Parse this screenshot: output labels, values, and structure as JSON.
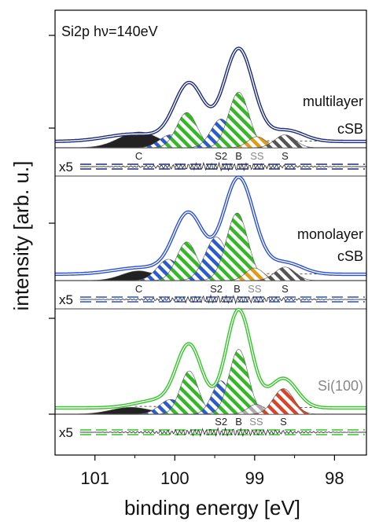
{
  "chart_data": {
    "type": "line",
    "title": "Si2p hν=140eV",
    "xlabel": "binding energy [eV]",
    "ylabel": "intensity [arb. u.]",
    "xlim": [
      101.5,
      97.6
    ],
    "x_reversed": true,
    "x_ticks": [
      {
        "value": 101,
        "label": "101"
      },
      {
        "value": 100,
        "label": "100"
      },
      {
        "value": 99,
        "label": "99"
      },
      {
        "value": 98,
        "label": "98"
      }
    ],
    "grid": false,
    "legend": "none",
    "panels": [
      {
        "name": "multilayer cSB",
        "label_lines": [
          "multilayer",
          "cSB"
        ],
        "line_color": "#1b2a7a",
        "residual_label": "x5",
        "spectrum_peaks": [
          {
            "center": 99.82,
            "height": 0.62,
            "width": 0.26
          },
          {
            "center": 99.2,
            "height": 1.0,
            "width": 0.26
          },
          {
            "center": 98.6,
            "height": 0.12,
            "width": 0.3
          },
          {
            "center": 100.5,
            "height": 0.08,
            "width": 0.5
          }
        ],
        "components": [
          {
            "name": "C",
            "center": 100.45,
            "height": 0.17,
            "width": 0.35,
            "fill": "#222222",
            "pattern": "solid"
          },
          {
            "name": "",
            "center": 100.05,
            "height": 0.14,
            "width": 0.2,
            "fill": "#2c5bd0",
            "pattern": "hatch"
          },
          {
            "name": "",
            "center": 99.85,
            "height": 0.38,
            "width": 0.18,
            "fill": "#35b826",
            "pattern": "hatch"
          },
          {
            "name": "S2",
            "center": 99.42,
            "height": 0.31,
            "width": 0.18,
            "fill": "#2c5bd0",
            "pattern": "hatch"
          },
          {
            "name": "B",
            "center": 99.2,
            "height": 0.6,
            "width": 0.18,
            "fill": "#35b826",
            "pattern": "hatch"
          },
          {
            "name": "SS",
            "center": 98.97,
            "height": 0.12,
            "width": 0.16,
            "fill": "#e09a18",
            "pattern": "hatch"
          },
          {
            "name": "S",
            "center": 98.62,
            "height": 0.14,
            "width": 0.18,
            "fill": "#555555",
            "pattern": "hatch"
          }
        ],
        "component_labels": [
          "C",
          "S2",
          "B",
          "SS",
          "S"
        ]
      },
      {
        "name": "monolayer cSB",
        "label_lines": [
          "monolayer",
          "cSB"
        ],
        "line_color": "#2a4fd8",
        "residual_label": "x5",
        "spectrum_peaks": [
          {
            "center": 99.83,
            "height": 0.62,
            "width": 0.26
          },
          {
            "center": 99.2,
            "height": 1.0,
            "width": 0.27
          },
          {
            "center": 98.62,
            "height": 0.12,
            "width": 0.3
          },
          {
            "center": 100.4,
            "height": 0.07,
            "width": 0.5
          }
        ],
        "components": [
          {
            "name": "C",
            "center": 100.45,
            "height": 0.1,
            "width": 0.3,
            "fill": "#222222",
            "pattern": "solid"
          },
          {
            "name": "",
            "center": 100.08,
            "height": 0.22,
            "width": 0.2,
            "fill": "#2c5bd0",
            "pattern": "hatch"
          },
          {
            "name": "",
            "center": 99.85,
            "height": 0.4,
            "width": 0.18,
            "fill": "#35b826",
            "pattern": "hatch"
          },
          {
            "name": "S2",
            "center": 99.48,
            "height": 0.45,
            "width": 0.2,
            "fill": "#2c5bd0",
            "pattern": "hatch"
          },
          {
            "name": "B",
            "center": 99.22,
            "height": 0.7,
            "width": 0.19,
            "fill": "#35b826",
            "pattern": "hatch"
          },
          {
            "name": "SS",
            "center": 99.0,
            "height": 0.13,
            "width": 0.16,
            "fill": "#e09a18",
            "pattern": "hatch"
          },
          {
            "name": "S",
            "center": 98.62,
            "height": 0.14,
            "width": 0.18,
            "fill": "#555555",
            "pattern": "hatch"
          }
        ],
        "component_labels": [
          "C",
          "S2",
          "B",
          "SS",
          "S"
        ]
      },
      {
        "name": "Si(100)",
        "label_lines": [
          "Si(100)"
        ],
        "line_color": "#33c526",
        "residual_label": "x5",
        "spectrum_peaks": [
          {
            "center": 99.82,
            "height": 0.62,
            "width": 0.22
          },
          {
            "center": 99.2,
            "height": 1.0,
            "width": 0.22
          },
          {
            "center": 98.64,
            "height": 0.3,
            "width": 0.24
          },
          {
            "center": 100.2,
            "height": 0.08,
            "width": 0.4
          }
        ],
        "components": [
          {
            "name": "",
            "center": 100.55,
            "height": 0.07,
            "width": 0.35,
            "fill": "#222222",
            "pattern": "solid"
          },
          {
            "name": "",
            "center": 100.05,
            "height": 0.15,
            "width": 0.2,
            "fill": "#2c5bd0",
            "pattern": "hatch"
          },
          {
            "name": "",
            "center": 99.82,
            "height": 0.44,
            "width": 0.16,
            "fill": "#35b826",
            "pattern": "hatch"
          },
          {
            "name": "S2",
            "center": 99.42,
            "height": 0.34,
            "width": 0.16,
            "fill": "#2c5bd0",
            "pattern": "hatch"
          },
          {
            "name": "B",
            "center": 99.2,
            "height": 0.66,
            "width": 0.17,
            "fill": "#35b826",
            "pattern": "hatch"
          },
          {
            "name": "SS",
            "center": 98.98,
            "height": 0.1,
            "width": 0.15,
            "fill": "#aaaaaa",
            "pattern": "hatch"
          },
          {
            "name": "S",
            "center": 98.64,
            "height": 0.26,
            "width": 0.18,
            "fill": "#d9432a",
            "pattern": "hatch"
          }
        ],
        "component_labels": [
          "S2",
          "B",
          "SS",
          "S"
        ]
      }
    ]
  }
}
